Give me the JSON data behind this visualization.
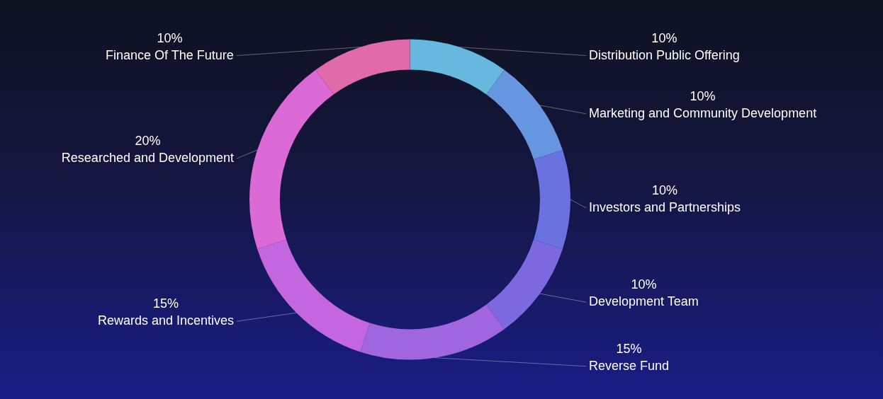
{
  "chart_data": {
    "type": "donut",
    "categories": [
      "Distribution Public Offering",
      "Marketing and Community Development",
      "Investors and Partnerships",
      "Development Team",
      "Reverse Fund",
      "Rewards and Incentives",
      "Researched and Development",
      "Finance Of The Future"
    ],
    "values": [
      10,
      10,
      10,
      10,
      15,
      15,
      20,
      10
    ],
    "colors": [
      "#66b8de",
      "#6696e0",
      "#6a72e0",
      "#7d68e0",
      "#a066e0",
      "#c466e0",
      "#dc6ad6",
      "#e06aaa"
    ],
    "value_labels": [
      "10%",
      "10%",
      "10%",
      "10%",
      "15%",
      "15%",
      "20%",
      "10%"
    ],
    "legend": false
  }
}
